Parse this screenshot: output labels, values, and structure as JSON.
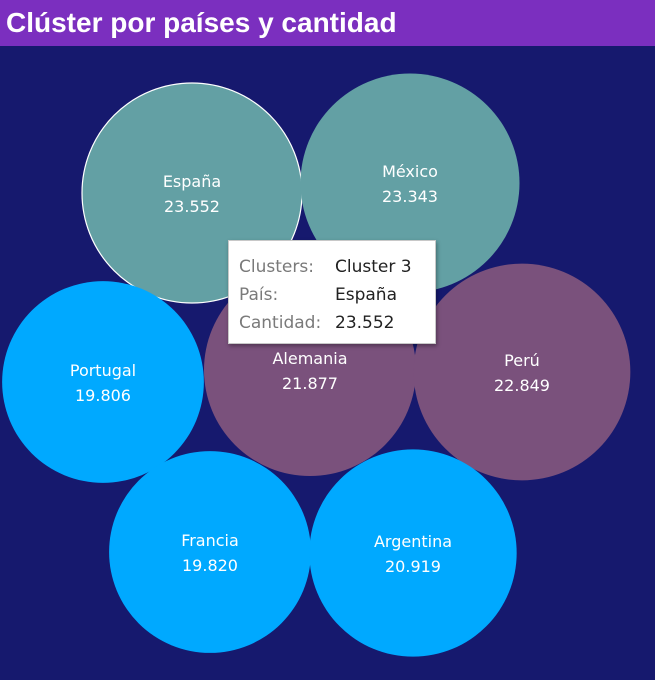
{
  "header": {
    "title": "Clúster por países y cantidad"
  },
  "colors": {
    "background": "#16196e",
    "header": "#7b2fbf",
    "cluster_1": "#00a9ff",
    "cluster_2": "#7a517c",
    "cluster_3": "#63a0a4"
  },
  "chart_data": {
    "type": "packed-bubble",
    "size_field": "Cantidad",
    "bubbles": [
      {
        "label": "España",
        "value_label": "23.552",
        "value": 23552,
        "cluster": "Cluster 3",
        "selected": true
      },
      {
        "label": "México",
        "value_label": "23.343",
        "value": 23343,
        "cluster": "Cluster 3"
      },
      {
        "label": "Portugal",
        "value_label": "19.806",
        "value": 19806,
        "cluster": "Cluster 1"
      },
      {
        "label": "Alemania",
        "value_label": "21.877",
        "value": 21877,
        "cluster": "Cluster 2"
      },
      {
        "label": "Perú",
        "value_label": "22.849",
        "value": 22849,
        "cluster": "Cluster 2"
      },
      {
        "label": "Francia",
        "value_label": "19.820",
        "value": 19820,
        "cluster": "Cluster 1"
      },
      {
        "label": "Argentina",
        "value_label": "20.919",
        "value": 20919,
        "cluster": "Cluster 1"
      }
    ]
  },
  "tooltip": {
    "rows": [
      {
        "key": "Clusters:",
        "value": "Cluster 3"
      },
      {
        "key": "País:",
        "value": "España"
      },
      {
        "key": "Cantidad:",
        "value": "23.552"
      }
    ]
  }
}
